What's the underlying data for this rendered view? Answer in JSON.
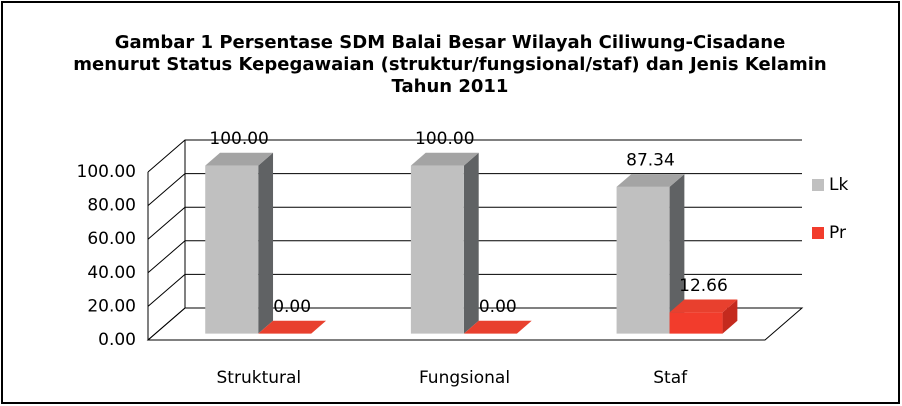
{
  "chart_data": {
    "type": "bar3d",
    "title": "Gambar 1 Persentase SDM Balai Besar Wilayah Ciliwung-Cisadane menurut Status Kepegawaian (struktur/fungsional/staf) dan Jenis Kelamin Tahun 2011",
    "categories": [
      "Struktural",
      "Fungsional",
      "Staf"
    ],
    "series": [
      {
        "name": "Lk",
        "color": "#c0c0c0",
        "side": "#606264",
        "top": "#a4a4a4",
        "values": [
          100,
          100,
          87.34
        ],
        "value_labels": [
          "100.00",
          "100.00",
          "87.34"
        ]
      },
      {
        "name": "Pr",
        "color": "#f23c2c",
        "side": "#c42a1e",
        "top": "#e8402e",
        "values": [
          0,
          0,
          12.66
        ],
        "value_labels": [
          "0.00",
          "0.00",
          "12.66"
        ]
      }
    ],
    "ylim": [
      0,
      100
    ],
    "yticks": [
      {
        "value": 0,
        "label": "0.00"
      },
      {
        "value": 20,
        "label": "20.00"
      },
      {
        "value": 40,
        "label": "40.00"
      },
      {
        "value": 60,
        "label": "60.00"
      },
      {
        "value": 80,
        "label": "80.00"
      },
      {
        "value": 100,
        "label": "100.00"
      }
    ],
    "grid": true,
    "legend": "right"
  }
}
